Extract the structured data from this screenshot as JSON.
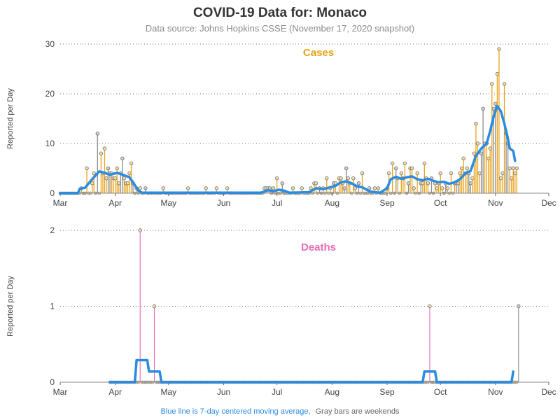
{
  "header": {
    "title": "COVID-19 Data for: Monaco",
    "subtitle": "Data source: Johns Hopkins CSSE (November 17, 2020 snapshot)"
  },
  "footer": {
    "note_blue": "Blue line is 7-day centered moving average,",
    "note_gray": "Gray bars are weekends"
  },
  "colors": {
    "cases": "#E8A317",
    "deaths": "#E66BB2",
    "moving_average": "#2A8BE0",
    "weekend": "#8C8C8C",
    "grid": "#777777"
  },
  "chart_data": [
    {
      "type": "bar",
      "title": "Cases",
      "ylabel": "Reported per Day",
      "xlabel": "",
      "x_axis": {
        "type": "date",
        "range": [
          "2020-03-01",
          "2020-12-01"
        ],
        "tick_labels": [
          "Mar",
          "Apr",
          "May",
          "Jun",
          "Jul",
          "Aug",
          "Sep",
          "Oct",
          "Nov",
          "Dec"
        ]
      },
      "ylim": [
        0,
        30
      ],
      "y_ticks": [
        0,
        10,
        20,
        30
      ],
      "grid": "horizontal dotted",
      "series": [
        {
          "name": "Cases",
          "points": [
            [
              "2020-03-13",
              1
            ],
            [
              "2020-03-16",
              5
            ],
            [
              "2020-03-19",
              2
            ],
            [
              "2020-03-20",
              4
            ],
            [
              "2020-03-22",
              12
            ],
            [
              "2020-03-24",
              8
            ],
            [
              "2020-03-25",
              4
            ],
            [
              "2020-03-26",
              9
            ],
            [
              "2020-03-27",
              3
            ],
            [
              "2020-03-28",
              5
            ],
            [
              "2020-03-29",
              4
            ],
            [
              "2020-03-30",
              4
            ],
            [
              "2020-03-31",
              3
            ],
            [
              "2020-04-01",
              3
            ],
            [
              "2020-04-02",
              5
            ],
            [
              "2020-04-03",
              2
            ],
            [
              "2020-04-04",
              4
            ],
            [
              "2020-04-05",
              7
            ],
            [
              "2020-04-06",
              3
            ],
            [
              "2020-04-07",
              2
            ],
            [
              "2020-04-08",
              2
            ],
            [
              "2020-04-09",
              4
            ],
            [
              "2020-04-10",
              6
            ],
            [
              "2020-04-11",
              2
            ],
            [
              "2020-04-13",
              1
            ],
            [
              "2020-04-15",
              1
            ],
            [
              "2020-04-18",
              1
            ],
            [
              "2020-04-28",
              1
            ],
            [
              "2020-05-12",
              1
            ],
            [
              "2020-05-22",
              1
            ],
            [
              "2020-05-28",
              1
            ],
            [
              "2020-06-03",
              1
            ],
            [
              "2020-06-24",
              1
            ],
            [
              "2020-06-25",
              1
            ],
            [
              "2020-06-26",
              1
            ],
            [
              "2020-06-27",
              1
            ],
            [
              "2020-06-29",
              1
            ],
            [
              "2020-07-01",
              3
            ],
            [
              "2020-07-04",
              2
            ],
            [
              "2020-07-10",
              1
            ],
            [
              "2020-07-15",
              1
            ],
            [
              "2020-07-20",
              1
            ],
            [
              "2020-07-22",
              2
            ],
            [
              "2020-07-23",
              2
            ],
            [
              "2020-07-25",
              1
            ],
            [
              "2020-07-27",
              1
            ],
            [
              "2020-07-29",
              3
            ],
            [
              "2020-07-31",
              1
            ],
            [
              "2020-08-02",
              2
            ],
            [
              "2020-08-03",
              2
            ],
            [
              "2020-08-05",
              3
            ],
            [
              "2020-08-06",
              3
            ],
            [
              "2020-08-07",
              2
            ],
            [
              "2020-08-08",
              1
            ],
            [
              "2020-08-09",
              5
            ],
            [
              "2020-08-10",
              3
            ],
            [
              "2020-08-11",
              2
            ],
            [
              "2020-08-13",
              3
            ],
            [
              "2020-08-14",
              1
            ],
            [
              "2020-08-16",
              2
            ],
            [
              "2020-08-18",
              4
            ],
            [
              "2020-08-22",
              1
            ],
            [
              "2020-08-25",
              1
            ],
            [
              "2020-08-27",
              1
            ],
            [
              "2020-09-01",
              1
            ],
            [
              "2020-09-02",
              4
            ],
            [
              "2020-09-04",
              6
            ],
            [
              "2020-09-06",
              5
            ],
            [
              "2020-09-07",
              3
            ],
            [
              "2020-09-09",
              4
            ],
            [
              "2020-09-10",
              3
            ],
            [
              "2020-09-11",
              6
            ],
            [
              "2020-09-13",
              2
            ],
            [
              "2020-09-14",
              5
            ],
            [
              "2020-09-15",
              5
            ],
            [
              "2020-09-16",
              1
            ],
            [
              "2020-09-18",
              4
            ],
            [
              "2020-09-20",
              2
            ],
            [
              "2020-09-21",
              2
            ],
            [
              "2020-09-22",
              6
            ],
            [
              "2020-09-23",
              3
            ],
            [
              "2020-09-24",
              2
            ],
            [
              "2020-09-26",
              3
            ],
            [
              "2020-09-28",
              2
            ],
            [
              "2020-09-29",
              1
            ],
            [
              "2020-09-30",
              2
            ],
            [
              "2020-10-01",
              4
            ],
            [
              "2020-10-02",
              1
            ],
            [
              "2020-10-04",
              2
            ],
            [
              "2020-10-05",
              1
            ],
            [
              "2020-10-07",
              4
            ],
            [
              "2020-10-09",
              2
            ],
            [
              "2020-10-10",
              2
            ],
            [
              "2020-10-11",
              2
            ],
            [
              "2020-10-12",
              4
            ],
            [
              "2020-10-13",
              5
            ],
            [
              "2020-10-14",
              7
            ],
            [
              "2020-10-15",
              4
            ],
            [
              "2020-10-16",
              5
            ],
            [
              "2020-10-17",
              4
            ],
            [
              "2020-10-18",
              2
            ],
            [
              "2020-10-19",
              3
            ],
            [
              "2020-10-20",
              8
            ],
            [
              "2020-10-21",
              14
            ],
            [
              "2020-10-22",
              10
            ],
            [
              "2020-10-23",
              4
            ],
            [
              "2020-10-24",
              8
            ],
            [
              "2020-10-25",
              17
            ],
            [
              "2020-10-26",
              10
            ],
            [
              "2020-10-27",
              10
            ],
            [
              "2020-10-28",
              7
            ],
            [
              "2020-10-29",
              9
            ],
            [
              "2020-10-30",
              22
            ],
            [
              "2020-10-31",
              17
            ],
            [
              "2020-11-01",
              18
            ],
            [
              "2020-11-02",
              24
            ],
            [
              "2020-11-03",
              29
            ],
            [
              "2020-11-04",
              3
            ],
            [
              "2020-11-05",
              4
            ],
            [
              "2020-11-06",
              22
            ],
            [
              "2020-11-07",
              12
            ],
            [
              "2020-11-08",
              10
            ],
            [
              "2020-11-09",
              5
            ],
            [
              "2020-11-10",
              3
            ],
            [
              "2020-11-11",
              5
            ],
            [
              "2020-11-12",
              4
            ],
            [
              "2020-11-13",
              5
            ]
          ],
          "moving_average": [
            [
              "2020-03-01",
              0
            ],
            [
              "2020-03-11",
              0
            ],
            [
              "2020-03-12",
              0.9
            ],
            [
              "2020-03-15",
              1.1
            ],
            [
              "2020-03-18",
              2.4
            ],
            [
              "2020-03-21",
              3.6
            ],
            [
              "2020-03-23",
              4.4
            ],
            [
              "2020-03-26",
              4.1
            ],
            [
              "2020-03-29",
              3.7
            ],
            [
              "2020-04-02",
              4.1
            ],
            [
              "2020-04-06",
              3.6
            ],
            [
              "2020-04-09",
              3.2
            ],
            [
              "2020-04-11",
              2.2
            ],
            [
              "2020-04-14",
              0.5
            ],
            [
              "2020-04-16",
              0.1
            ],
            [
              "2020-06-22",
              0.1
            ],
            [
              "2020-06-26",
              0.6
            ],
            [
              "2020-06-29",
              0.4
            ],
            [
              "2020-07-02",
              0.7
            ],
            [
              "2020-07-05",
              0.5
            ],
            [
              "2020-07-08",
              0.1
            ],
            [
              "2020-07-19",
              0.2
            ],
            [
              "2020-07-23",
              1.0
            ],
            [
              "2020-07-27",
              0.8
            ],
            [
              "2020-07-30",
              1.1
            ],
            [
              "2020-08-03",
              1.5
            ],
            [
              "2020-08-06",
              2.2
            ],
            [
              "2020-08-09",
              2.4
            ],
            [
              "2020-08-12",
              2.0
            ],
            [
              "2020-08-15",
              1.4
            ],
            [
              "2020-08-18",
              1.2
            ],
            [
              "2020-08-22",
              0.4
            ],
            [
              "2020-08-25",
              0.2
            ],
            [
              "2020-08-28",
              0.1
            ],
            [
              "2020-09-01",
              1.0
            ],
            [
              "2020-09-03",
              2.8
            ],
            [
              "2020-09-06",
              3.3
            ],
            [
              "2020-09-09",
              2.9
            ],
            [
              "2020-09-12",
              3.2
            ],
            [
              "2020-09-15",
              3.4
            ],
            [
              "2020-09-18",
              2.8
            ],
            [
              "2020-09-21",
              2.6
            ],
            [
              "2020-09-24",
              2.9
            ],
            [
              "2020-09-27",
              2.5
            ],
            [
              "2020-09-30",
              2.2
            ],
            [
              "2020-10-03",
              2.3
            ],
            [
              "2020-10-06",
              1.9
            ],
            [
              "2020-10-09",
              2.2
            ],
            [
              "2020-10-12",
              2.8
            ],
            [
              "2020-10-15",
              4.0
            ],
            [
              "2020-10-18",
              4.5
            ],
            [
              "2020-10-21",
              7.5
            ],
            [
              "2020-10-24",
              9.0
            ],
            [
              "2020-10-27",
              10.0
            ],
            [
              "2020-10-29",
              12.5
            ],
            [
              "2020-10-31",
              15.5
            ],
            [
              "2020-11-02",
              17.5
            ],
            [
              "2020-11-04",
              16.5
            ],
            [
              "2020-11-06",
              14.0
            ],
            [
              "2020-11-08",
              11.0
            ],
            [
              "2020-11-09",
              9.0
            ],
            [
              "2020-11-11",
              8.5
            ],
            [
              "2020-11-12",
              6.5
            ]
          ]
        }
      ]
    },
    {
      "type": "bar",
      "title": "Deaths",
      "ylabel": "Reported per Day",
      "xlabel": "",
      "x_axis": {
        "type": "date",
        "range": [
          "2020-03-01",
          "2020-12-01"
        ],
        "tick_labels": [
          "Mar",
          "Apr",
          "May",
          "Jun",
          "Jul",
          "Aug",
          "Sep",
          "Oct",
          "Nov",
          "Dec"
        ]
      },
      "ylim": [
        0,
        2
      ],
      "y_ticks": [
        0,
        1,
        2
      ],
      "grid": "horizontal dotted",
      "series": [
        {
          "name": "Deaths",
          "points": [
            [
              "2020-04-15",
              2
            ],
            [
              "2020-04-23",
              1
            ],
            [
              "2020-09-25",
              1
            ],
            [
              "2020-11-14",
              1
            ]
          ],
          "moving_average": [
            [
              "2020-03-29",
              0
            ],
            [
              "2020-04-12",
              0
            ],
            [
              "2020-04-13",
              0.29
            ],
            [
              "2020-04-19",
              0.29
            ],
            [
              "2020-04-20",
              0.14
            ],
            [
              "2020-04-26",
              0.14
            ],
            [
              "2020-04-27",
              0
            ],
            [
              "2020-09-21",
              0
            ],
            [
              "2020-09-22",
              0.14
            ],
            [
              "2020-09-28",
              0.14
            ],
            [
              "2020-09-29",
              0
            ],
            [
              "2020-11-10",
              0
            ],
            [
              "2020-11-11",
              0.14
            ]
          ]
        }
      ]
    }
  ]
}
